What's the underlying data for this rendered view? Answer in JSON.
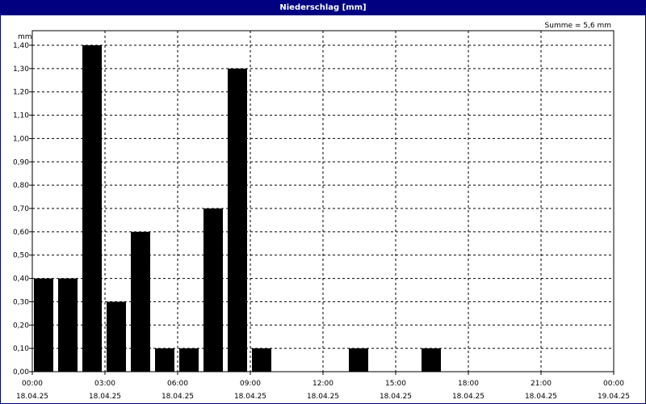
{
  "window": {
    "title": "Niederschlag [mm]"
  },
  "chart_data": {
    "type": "bar",
    "title": "Niederschlag [mm]",
    "annotation": "Summe = 5,6 mm",
    "ylabel": "mm",
    "ylim": [
      0,
      1.4
    ],
    "yticks": [
      "0,00",
      "0,10",
      "0,20",
      "0,30",
      "0,40",
      "0,50",
      "0,60",
      "0,70",
      "0,80",
      "0,90",
      "1,00",
      "1,10",
      "1,20",
      "1,30",
      "1,40"
    ],
    "xticks": [
      {
        "time": "00:00",
        "date": "18.04.25"
      },
      {
        "time": "03:00",
        "date": "18.04.25"
      },
      {
        "time": "06:00",
        "date": "18.04.25"
      },
      {
        "time": "09:00",
        "date": "18.04.25"
      },
      {
        "time": "12:00",
        "date": "18.04.25"
      },
      {
        "time": "15:00",
        "date": "18.04.25"
      },
      {
        "time": "18:00",
        "date": "18.04.25"
      },
      {
        "time": "21:00",
        "date": "18.04.25"
      },
      {
        "time": "00:00",
        "date": "19.04.25"
      }
    ],
    "hours_per_interval": 1,
    "values": [
      0.4,
      0.4,
      1.4,
      0.3,
      0.6,
      0.1,
      0.1,
      0.7,
      1.3,
      0.1,
      0,
      0,
      0,
      0.1,
      0,
      0,
      0.1,
      0,
      0,
      0,
      0,
      0,
      0,
      0
    ],
    "grid": true,
    "bar_color": "#000000"
  }
}
